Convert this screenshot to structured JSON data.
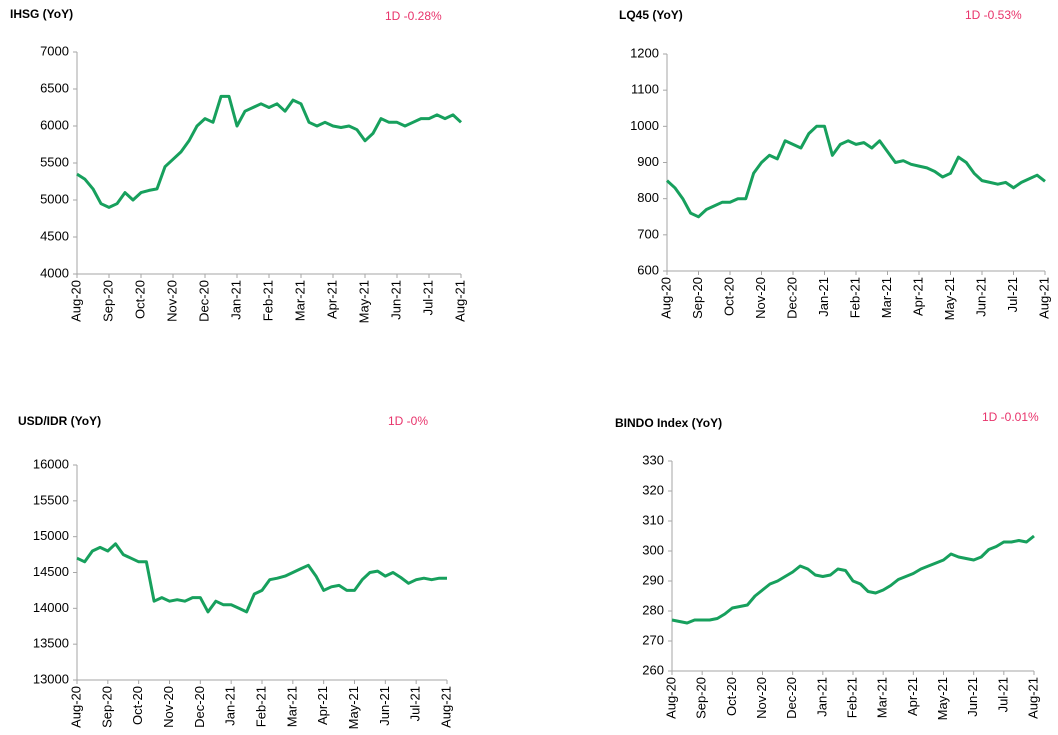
{
  "chart_data": [
    {
      "type": "line",
      "title": "IHSG (YoY)",
      "annotation": "1D -0.28%",
      "color": "#17a05d",
      "categories": [
        "Aug-20",
        null,
        null,
        null,
        "Sep-20",
        null,
        null,
        null,
        "Oct-20",
        null,
        null,
        null,
        "Nov-20",
        null,
        null,
        null,
        "Dec-20",
        null,
        null,
        null,
        "Jan-21",
        null,
        null,
        null,
        "Feb-21",
        null,
        null,
        null,
        "Mar-21",
        null,
        null,
        null,
        "Apr-21",
        null,
        null,
        null,
        "May-21",
        null,
        null,
        null,
        "Jun-21",
        null,
        null,
        null,
        "Jul-21",
        null,
        null,
        null,
        "Aug-21"
      ],
      "values": [
        5350,
        5280,
        5150,
        4950,
        4900,
        4950,
        5100,
        5000,
        5100,
        5130,
        5150,
        5450,
        5550,
        5650,
        5800,
        6000,
        6100,
        6050,
        6400,
        6400,
        6000,
        6200,
        6250,
        6300,
        6250,
        6300,
        6200,
        6350,
        6300,
        6050,
        6000,
        6050,
        6000,
        5980,
        6000,
        5950,
        5800,
        5900,
        6100,
        6050,
        6050,
        6000,
        6050,
        6100,
        6100,
        6150,
        6100,
        6150,
        6050
      ],
      "ylim": [
        4000,
        7000
      ],
      "yticks": [
        4000,
        4500,
        5000,
        5500,
        6000,
        6500,
        7000
      ]
    },
    {
      "type": "line",
      "title": "LQ45 (YoY)",
      "annotation": "1D -0.53%",
      "color": "#17a05d",
      "categories": [
        "Aug-20",
        null,
        null,
        null,
        "Sep-20",
        null,
        null,
        null,
        "Oct-20",
        null,
        null,
        null,
        "Nov-20",
        null,
        null,
        null,
        "Dec-20",
        null,
        null,
        null,
        "Jan-21",
        null,
        null,
        null,
        "Feb-21",
        null,
        null,
        null,
        "Mar-21",
        null,
        null,
        null,
        "Apr-21",
        null,
        null,
        null,
        "May-21",
        null,
        null,
        null,
        "Jun-21",
        null,
        null,
        null,
        "Jul-21",
        null,
        null,
        null,
        "Aug-21"
      ],
      "values": [
        850,
        830,
        800,
        760,
        750,
        770,
        780,
        790,
        790,
        800,
        800,
        870,
        900,
        920,
        910,
        960,
        950,
        940,
        980,
        1000,
        1000,
        920,
        950,
        960,
        950,
        955,
        940,
        960,
        930,
        900,
        905,
        895,
        890,
        885,
        875,
        860,
        870,
        915,
        900,
        870,
        850,
        845,
        840,
        845,
        830,
        845,
        855,
        865,
        848
      ],
      "ylim": [
        600,
        1200
      ],
      "yticks": [
        600,
        700,
        800,
        900,
        1000,
        1100,
        1200
      ]
    },
    {
      "type": "line",
      "title": "USD/IDR  (YoY)",
      "annotation": "1D -0%",
      "color": "#17a05d",
      "categories": [
        "Aug-20",
        null,
        null,
        null,
        "Sep-20",
        null,
        null,
        null,
        "Oct-20",
        null,
        null,
        null,
        "Nov-20",
        null,
        null,
        null,
        "Dec-20",
        null,
        null,
        null,
        "Jan-21",
        null,
        null,
        null,
        "Feb-21",
        null,
        null,
        null,
        "Mar-21",
        null,
        null,
        null,
        "Apr-21",
        null,
        null,
        null,
        "May-21",
        null,
        null,
        null,
        "Jun-21",
        null,
        null,
        null,
        "Jul-21",
        null,
        null,
        null,
        "Aug-21"
      ],
      "values": [
        14700,
        14650,
        14800,
        14850,
        14800,
        14900,
        14750,
        14700,
        14650,
        14650,
        14100,
        14150,
        14100,
        14120,
        14100,
        14150,
        14150,
        13950,
        14100,
        14050,
        14050,
        14000,
        13950,
        14200,
        14250,
        14400,
        14420,
        14450,
        14500,
        14550,
        14600,
        14450,
        14250,
        14300,
        14320,
        14250,
        14250,
        14400,
        14500,
        14520,
        14450,
        14500,
        14430,
        14350,
        14400,
        14420,
        14400,
        14420,
        14420
      ],
      "ylim": [
        13000,
        16000
      ],
      "yticks": [
        13000,
        13500,
        14000,
        14500,
        15000,
        15500,
        16000
      ]
    },
    {
      "type": "line",
      "title": "BINDO Index (YoY)",
      "annotation": "1D -0.01%",
      "color": "#17a05d",
      "categories": [
        "Aug-20",
        null,
        null,
        null,
        "Sep-20",
        null,
        null,
        null,
        "Oct-20",
        null,
        null,
        null,
        "Nov-20",
        null,
        null,
        null,
        "Dec-20",
        null,
        null,
        null,
        "Jan-21",
        null,
        null,
        null,
        "Feb-21",
        null,
        null,
        null,
        "Mar-21",
        null,
        null,
        null,
        "Apr-21",
        null,
        null,
        null,
        "May-21",
        null,
        null,
        null,
        "Jun-21",
        null,
        null,
        null,
        "Jul-21",
        null,
        null,
        null,
        "Aug-21"
      ],
      "values": [
        277,
        276.5,
        276,
        277,
        277,
        277,
        277.5,
        279,
        281,
        281.5,
        282,
        285,
        287,
        289,
        290,
        291.5,
        293,
        295,
        294,
        292,
        291.5,
        292,
        294,
        293.5,
        290,
        289,
        286.5,
        286,
        287,
        288.5,
        290.5,
        291.5,
        292.5,
        294,
        295,
        296,
        297,
        299,
        298,
        297.5,
        297,
        298,
        300.5,
        301.5,
        303,
        303,
        303.5,
        303,
        305
      ],
      "ylim": [
        260,
        330
      ],
      "yticks": [
        260,
        270,
        280,
        290,
        300,
        310,
        320,
        330
      ]
    }
  ]
}
